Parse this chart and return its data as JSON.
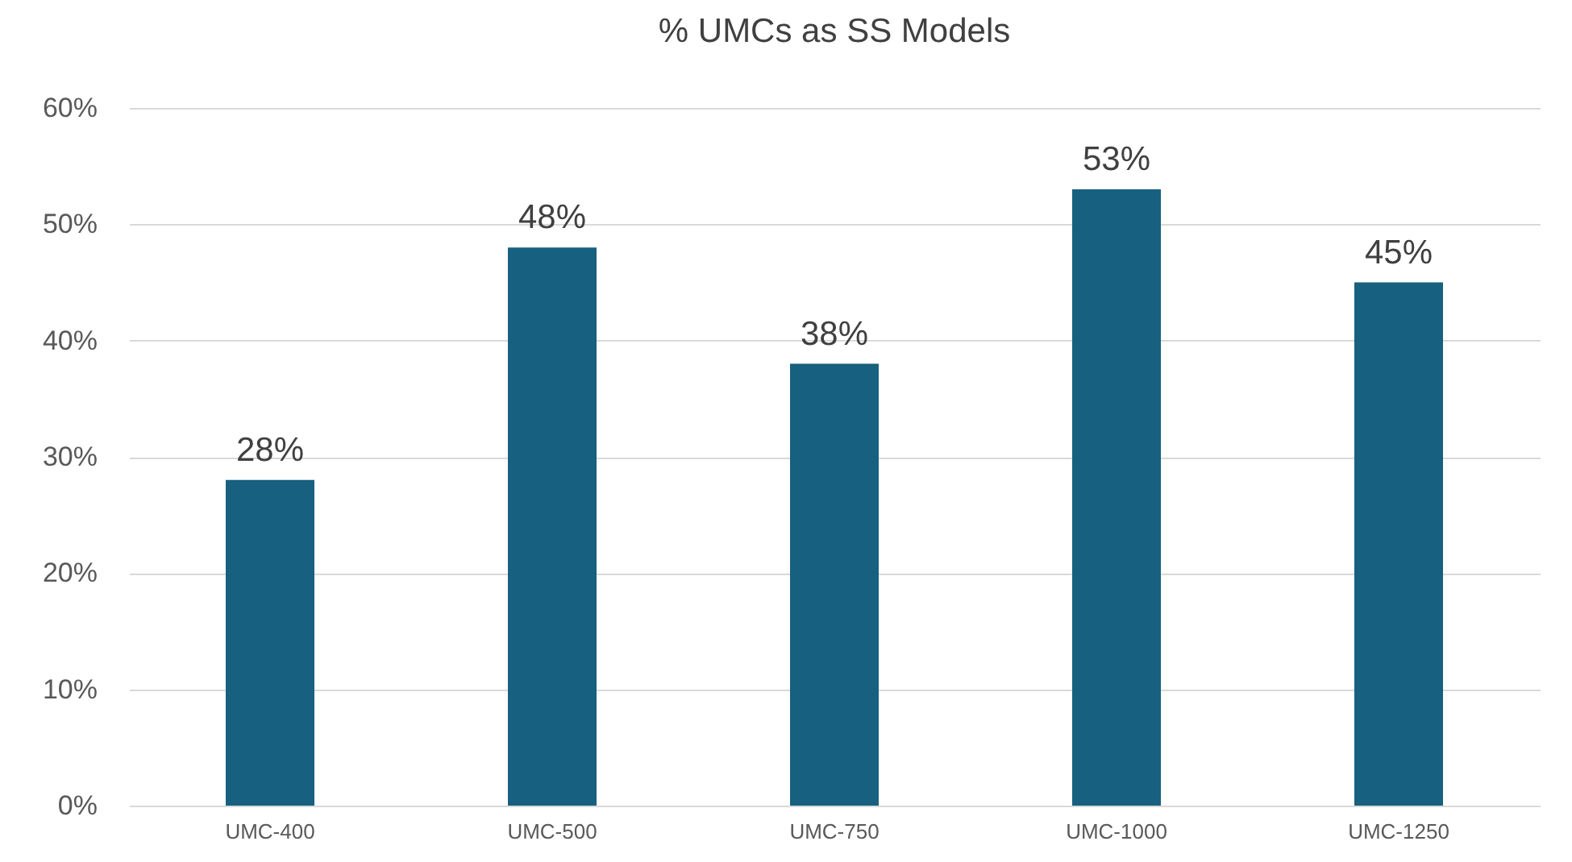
{
  "chart_data": {
    "type": "bar",
    "title": "% UMCs as SS Models",
    "categories": [
      "UMC-400",
      "UMC-500",
      "UMC-750",
      "UMC-1000",
      "UMC-1250"
    ],
    "values": [
      28,
      48,
      38,
      53,
      45
    ],
    "value_labels": [
      "28%",
      "48%",
      "38%",
      "53%",
      "45%"
    ],
    "color": "#17607f",
    "ylim": [
      0,
      60
    ],
    "yticks": [
      {
        "value": 0,
        "label": "0%"
      },
      {
        "value": 10,
        "label": "10%"
      },
      {
        "value": 20,
        "label": "20%"
      },
      {
        "value": 30,
        "label": "30%"
      },
      {
        "value": 40,
        "label": "40%"
      },
      {
        "value": 50,
        "label": "50%"
      },
      {
        "value": 60,
        "label": "60%"
      }
    ],
    "grid": "y"
  }
}
